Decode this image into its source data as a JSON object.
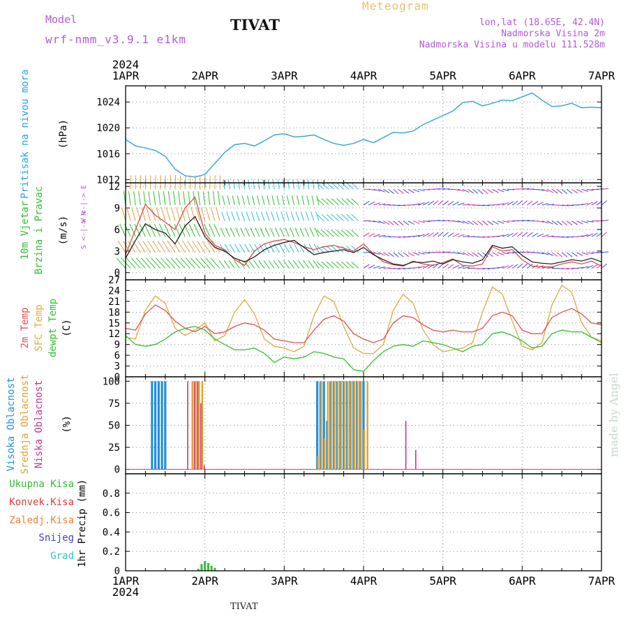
{
  "header": {
    "model_label": "Model",
    "model_version": "wrf-nmm_v3.9.1  e1km",
    "station": "TIVAT",
    "product": "Meteogram",
    "coords": "lon,lat (18.65E, 42.4N)",
    "elevation": "Nadmorska Visina 2m",
    "model_elevation": "Nadmorska Visina u modelu 111.528m"
  },
  "footer": {
    "station": "TIVAT",
    "credit": "made by Angel"
  },
  "colors": {
    "pressure": "#2aa3e0",
    "wind_speed": "#111111",
    "gust": "#e03c3c",
    "temp2m": "#e05050",
    "sfc_temp": "#e0a840",
    "dewpoint": "#30c030",
    "high_cloud": "#2090e0",
    "mid_cloud": "#e0a030",
    "low_cloud": "#d03090",
    "total_precip": "#30c030",
    "conv_precip": "#e03c3c",
    "frozen_precip": "#f08030",
    "snow": "#4040e0",
    "graupel": "#30c0c0",
    "purple_label": "#b05ad8"
  },
  "x_axis": {
    "year": "2024",
    "ticks": [
      "1APR",
      "2APR",
      "3APR",
      "4APR",
      "5APR",
      "6APR",
      "7APR"
    ]
  },
  "panels": {
    "pressure": {
      "label": "Pritisak na nivou mora",
      "unit": "(hPa)"
    },
    "wind": {
      "label1": "10m Vjetar",
      "label2": "Brzina i Pravac",
      "unit": "(m/s)",
      "compass_a": "W <-|-> E",
      "compass_b": "S <-|-> N"
    },
    "temp": {
      "label1": "2m Temp",
      "label2": "SFC Temp",
      "label3": "dewpt Temp",
      "unit": "(C)"
    },
    "cloud": {
      "label1": "Visoka Oblacnost",
      "label2": "Srednja Oblacnost",
      "label3": "Niska Oblacnost",
      "unit": "(%)"
    },
    "precip": {
      "label1": "Ukupna Kisa",
      "label2": "Konvek.Kisa",
      "label3": "Zaledj.Kisa",
      "label4": "Snijeg",
      "label5": "Grad",
      "unit": "1hr Precip (mm)"
    }
  },
  "chart_data": [
    {
      "type": "line",
      "title": "Pritisak na nivou mora",
      "ylabel": "(hPa)",
      "ylim": [
        1011.5,
        1026.5
      ],
      "yticks": [
        1012,
        1016,
        1020,
        1024
      ],
      "x_unit": "hours since 1APR 2024 00:00",
      "series": [
        {
          "name": "Pritisak na nivou mora",
          "x": [
            0,
            3,
            6,
            9,
            12,
            15,
            18,
            21,
            24,
            27,
            30,
            33,
            36,
            39,
            42,
            45,
            48,
            51,
            54,
            57,
            60,
            63,
            66,
            69,
            72,
            75,
            78,
            81,
            84,
            87,
            90,
            93,
            96,
            99,
            102,
            105,
            108,
            111,
            114,
            117,
            120,
            123,
            126,
            129,
            132,
            135,
            138,
            141,
            144
          ],
          "y": [
            1018.2,
            1017.2,
            1016.9,
            1016.5,
            1015.6,
            1013.6,
            1012.6,
            1012.4,
            1012.8,
            1014.5,
            1016.2,
            1017.4,
            1017.6,
            1017.2,
            1018.0,
            1018.9,
            1019.1,
            1018.6,
            1018.7,
            1018.9,
            1018.2,
            1017.6,
            1017.3,
            1017.6,
            1018.2,
            1017.7,
            1018.5,
            1019.3,
            1019.2,
            1019.5,
            1020.5,
            1021.2,
            1021.9,
            1022.6,
            1023.9,
            1024.1,
            1023.4,
            1023.8,
            1024.3,
            1024.2,
            1024.8,
            1025.4,
            1024.3,
            1023.3,
            1023.4,
            1023.8,
            1023.1,
            1023.2,
            1023.1
          ]
        }
      ]
    },
    {
      "type": "line",
      "title": "10m Vjetar Brzina i Pravac",
      "ylabel": "(m/s)",
      "ylim": [
        -1,
        12.5
      ],
      "yticks": [
        0,
        3,
        6,
        9,
        12
      ],
      "x_unit": "hours since 1APR 2024 00:00",
      "series": [
        {
          "name": "wind speed",
          "x": [
            0,
            3,
            6,
            9,
            12,
            15,
            18,
            21,
            24,
            27,
            30,
            33,
            36,
            39,
            42,
            45,
            48,
            51,
            54,
            57,
            60,
            63,
            66,
            69,
            72,
            75,
            78,
            81,
            84,
            87,
            90,
            93,
            96,
            99,
            102,
            105,
            108,
            111,
            114,
            117,
            120,
            123,
            126,
            129,
            132,
            135,
            138,
            141,
            144
          ],
          "y": [
            2.0,
            4.5,
            6.8,
            6.0,
            5.5,
            4.0,
            6.5,
            7.8,
            5.0,
            3.5,
            3.0,
            2.0,
            1.5,
            2.2,
            3.2,
            3.8,
            4.2,
            4.5,
            3.5,
            2.5,
            2.8,
            3.0,
            3.2,
            2.8,
            3.5,
            2.5,
            1.8,
            1.2,
            1.0,
            1.5,
            1.4,
            1.6,
            1.2,
            1.8,
            1.5,
            1.3,
            1.8,
            3.8,
            3.4,
            3.6,
            2.4,
            1.5,
            1.3,
            1.2,
            1.5,
            1.8,
            1.6,
            2.0,
            1.5
          ]
        },
        {
          "name": "gust",
          "x": [
            0,
            3,
            6,
            9,
            12,
            15,
            18,
            21,
            24,
            27,
            30,
            33,
            36,
            39,
            42,
            45,
            48,
            51,
            54,
            57,
            60,
            63,
            66,
            69,
            72,
            75,
            78,
            81,
            84,
            87,
            90,
            93,
            96,
            99,
            102,
            105,
            108,
            111,
            114,
            117,
            120,
            123,
            126,
            129,
            132,
            135,
            138,
            141,
            144
          ],
          "y": [
            2.5,
            6.0,
            9.5,
            8.0,
            7.0,
            6.0,
            9.0,
            10.5,
            5.5,
            3.8,
            3.2,
            1.8,
            1.0,
            3.0,
            4.0,
            4.4,
            4.6,
            4.2,
            3.6,
            3.2,
            3.6,
            3.8,
            3.4,
            3.0,
            4.0,
            2.6,
            1.5,
            1.1,
            0.9,
            1.6,
            1.2,
            1.0,
            1.4,
            1.9,
            1.0,
            0.9,
            1.2,
            3.6,
            3.0,
            3.2,
            1.8,
            0.9,
            0.8,
            0.8,
            1.2,
            1.5,
            1.2,
            1.6,
            0.9
          ]
        }
      ]
    },
    {
      "type": "line",
      "title": "2m Temp, SFC Temp, dewpt Temp",
      "ylabel": "(C)",
      "ylim": [
        0,
        27
      ],
      "yticks": [
        0,
        3,
        6,
        9,
        12,
        15,
        18,
        21,
        24,
        27
      ],
      "x_unit": "hours since 1APR 2024 00:00",
      "series": [
        {
          "name": "2m Temp",
          "x": [
            0,
            3,
            6,
            9,
            12,
            15,
            18,
            21,
            24,
            27,
            30,
            33,
            36,
            39,
            42,
            45,
            48,
            51,
            54,
            57,
            60,
            63,
            66,
            69,
            72,
            75,
            78,
            81,
            84,
            87,
            90,
            93,
            96,
            99,
            102,
            105,
            108,
            111,
            114,
            117,
            120,
            123,
            126,
            129,
            132,
            135,
            138,
            141,
            144
          ],
          "y": [
            13.5,
            13.0,
            17.5,
            20.0,
            18.5,
            15.5,
            13.5,
            12.5,
            14.0,
            12.0,
            12.5,
            14.0,
            15.0,
            14.5,
            13.0,
            10.5,
            10.0,
            9.5,
            9.5,
            13.0,
            16.0,
            17.0,
            15.5,
            12.0,
            10.5,
            9.5,
            10.5,
            15.0,
            17.0,
            16.5,
            14.5,
            13.0,
            12.5,
            13.0,
            12.5,
            12.5,
            13.5,
            17.0,
            18.0,
            17.0,
            13.0,
            12.0,
            12.0,
            16.5,
            18.0,
            19.0,
            17.5,
            15.0,
            14.5
          ]
        },
        {
          "name": "SFC Temp",
          "x": [
            0,
            3,
            6,
            9,
            12,
            15,
            18,
            21,
            24,
            27,
            30,
            33,
            36,
            39,
            42,
            45,
            48,
            51,
            54,
            57,
            60,
            63,
            66,
            69,
            72,
            75,
            78,
            81,
            84,
            87,
            90,
            93,
            96,
            99,
            102,
            105,
            108,
            111,
            114,
            117,
            120,
            123,
            126,
            129,
            132,
            135,
            138,
            141,
            144
          ],
          "y": [
            11.0,
            10.5,
            18.5,
            22.5,
            20.5,
            13.5,
            11.5,
            13.0,
            15.0,
            10.0,
            11.5,
            18.0,
            21.5,
            17.5,
            10.5,
            8.5,
            8.0,
            7.0,
            8.5,
            17.0,
            22.5,
            21.0,
            14.0,
            8.0,
            6.5,
            6.5,
            9.0,
            18.5,
            23.0,
            20.5,
            13.0,
            9.0,
            7.0,
            7.5,
            8.0,
            9.5,
            18.0,
            25.0,
            23.0,
            15.5,
            8.5,
            7.5,
            9.5,
            20.0,
            25.5,
            23.5,
            15.0,
            11.0,
            10.0
          ]
        },
        {
          "name": "dewpt Temp",
          "x": [
            0,
            3,
            6,
            9,
            12,
            15,
            18,
            21,
            24,
            27,
            30,
            33,
            36,
            39,
            42,
            45,
            48,
            51,
            54,
            57,
            60,
            63,
            66,
            69,
            72,
            75,
            78,
            81,
            84,
            87,
            90,
            93,
            96,
            99,
            102,
            105,
            108,
            111,
            114,
            117,
            120,
            123,
            126,
            129,
            132,
            135,
            138,
            141,
            144
          ],
          "y": [
            11.5,
            9.0,
            8.5,
            9.0,
            10.5,
            12.5,
            13.5,
            14.0,
            13.0,
            10.5,
            9.0,
            7.5,
            7.5,
            8.0,
            6.5,
            4.0,
            5.5,
            5.0,
            5.5,
            7.0,
            6.5,
            5.5,
            5.0,
            2.0,
            1.5,
            4.5,
            7.0,
            8.5,
            9.0,
            8.5,
            10.0,
            9.5,
            9.0,
            8.0,
            7.0,
            8.5,
            9.0,
            12.0,
            12.5,
            11.5,
            10.0,
            8.0,
            8.5,
            12.0,
            13.0,
            12.5,
            12.5,
            11.0,
            9.5
          ]
        }
      ]
    },
    {
      "type": "bar",
      "title": "Oblacnost",
      "ylabel": "(%)",
      "ylim": [
        -5,
        105
      ],
      "yticks": [
        0,
        25,
        50,
        75,
        100
      ],
      "x_unit": "hours since 1APR 2024 00:00",
      "series": [
        {
          "name": "Visoka Oblacnost",
          "x": [
            8,
            9,
            10,
            11,
            12,
            58,
            59,
            60,
            61,
            62,
            63,
            64,
            65,
            66,
            67,
            68,
            69,
            70,
            71,
            72
          ],
          "y": [
            100,
            100,
            100,
            100,
            100,
            100,
            100,
            100,
            55,
            100,
            100,
            100,
            100,
            100,
            100,
            100,
            100,
            100,
            100,
            100
          ]
        },
        {
          "name": "Srednja Oblacnost",
          "x": [
            20,
            21,
            22,
            23,
            58,
            59,
            60,
            61,
            62,
            63,
            64,
            65,
            66,
            67,
            68,
            69,
            70,
            71,
            72,
            73
          ],
          "y": [
            100,
            100,
            100,
            100,
            15,
            100,
            35,
            100,
            100,
            100,
            100,
            100,
            100,
            100,
            100,
            100,
            100,
            100,
            45,
            100
          ]
        },
        {
          "name": "Niska Oblacnost",
          "x": [
            19,
            21,
            22,
            23,
            24,
            85,
            88
          ],
          "y": [
            100,
            100,
            100,
            75,
            5,
            55,
            22
          ]
        }
      ]
    },
    {
      "type": "bar",
      "title": "1hr Precip",
      "ylabel": "1hr Precip (mm)",
      "ylim": [
        0,
        1.0
      ],
      "yticks": [
        0,
        0.2,
        0.4,
        0.6,
        0.8
      ],
      "x_unit": "hours since 1APR 2024 00:00",
      "series": [
        {
          "name": "Ukupna Kisa",
          "x": [
            22,
            23,
            24,
            25,
            26,
            27
          ],
          "y": [
            0.02,
            0.07,
            0.1,
            0.08,
            0.05,
            0.03
          ]
        }
      ]
    }
  ]
}
